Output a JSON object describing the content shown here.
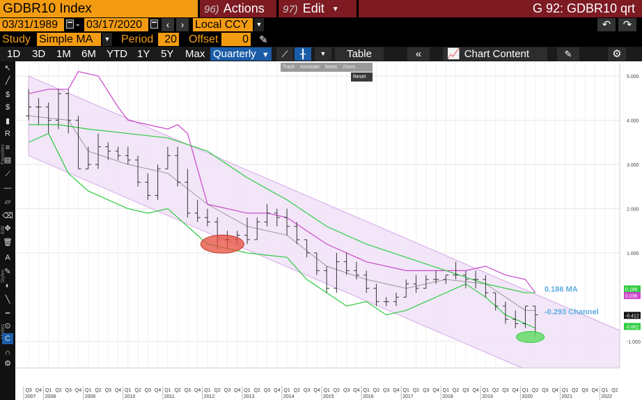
{
  "header": {
    "ticker": "GDBR10 Index",
    "actions_num": "96)",
    "actions_label": "Actions",
    "edit_num": "97)",
    "edit_label": "Edit",
    "right_title": "G 92: GDBR10 qrt"
  },
  "controls": {
    "date_start": "03/31/1989",
    "date_end": "03/17/2020",
    "date_separator": "-",
    "currency": "Local CCY",
    "study_label": "Study",
    "study_value": "Simple MA",
    "period_label": "Period",
    "period_value": "20",
    "offset_label": "Offset",
    "offset_value": "0"
  },
  "range_bar": {
    "buttons": [
      "1D",
      "3D",
      "1M",
      "6M",
      "YTD",
      "1Y",
      "5Y",
      "Max"
    ],
    "selected": "Quarterly",
    "table_label": "Table",
    "chart_content_label": "Chart Content"
  },
  "zoom_tools": {
    "items": [
      "Track",
      "Annotate",
      "News",
      "Zoom"
    ],
    "reset_label": "Reset"
  },
  "left_toolbar": {
    "sections": [
      "Favorites",
      "Edit",
      "Styles",
      "Modes"
    ]
  },
  "colors": {
    "amber": "#f39c12",
    "maroon": "#7d1a22",
    "selected_blue": "#1a5ca8",
    "ma_line": "#2ecc40",
    "channel_line": "#cc44cc",
    "band_fill": "#f0e2f7",
    "price_bars": "#333333",
    "mid_line": "#999999"
  },
  "chart_data": {
    "type": "ohlc",
    "title": "",
    "xlabel": "",
    "ylabel": "",
    "ylim": [
      -1.6,
      5.3
    ],
    "yticks": [
      {
        "v": 5,
        "label": "5.000"
      },
      {
        "v": 4,
        "label": "4.000"
      },
      {
        "v": 3,
        "label": "3.000"
      },
      {
        "v": 2,
        "label": "2.000"
      },
      {
        "v": 1,
        "label": "1.000"
      },
      {
        "v": -1,
        "label": "-1.000"
      }
    ],
    "quarter_labels": [
      "Q3",
      "Q4",
      "Q1",
      "Q2",
      "Q3",
      "Q4",
      "Q1",
      "Q2",
      "Q3",
      "Q4",
      "Q1",
      "Q2",
      "Q3",
      "Q4",
      "Q1",
      "Q2",
      "Q3",
      "Q4",
      "Q1",
      "Q2",
      "Q3",
      "Q4",
      "Q1",
      "Q2",
      "Q3",
      "Q4",
      "Q1",
      "Q2",
      "Q3",
      "Q4",
      "Q1",
      "Q2",
      "Q3",
      "Q4",
      "Q1",
      "Q2",
      "Q3",
      "Q4",
      "Q1",
      "Q2",
      "Q3",
      "Q4",
      "Q1",
      "Q2",
      "Q3",
      "Q4",
      "Q1",
      "Q2",
      "Q3",
      "Q4",
      "Q1",
      "Q2",
      "Q3",
      "Q4",
      "Q1",
      "Q2",
      "Q3",
      "Q4",
      "Q1",
      "Q2"
    ],
    "year_labels": [
      {
        "year": "2007",
        "q": 0
      },
      {
        "year": "2008",
        "q": 2
      },
      {
        "year": "2009",
        "q": 6
      },
      {
        "year": "2010",
        "q": 10
      },
      {
        "year": "2011",
        "q": 14
      },
      {
        "year": "2012",
        "q": 18
      },
      {
        "year": "2013",
        "q": 22
      },
      {
        "year": "2014",
        "q": 26
      },
      {
        "year": "2015",
        "q": 30
      },
      {
        "year": "2016",
        "q": 34
      },
      {
        "year": "2017",
        "q": 38
      },
      {
        "year": "2018",
        "q": 42
      },
      {
        "year": "2019",
        "q": 46
      },
      {
        "year": "2020",
        "q": 50
      },
      {
        "year": "2021",
        "q": 54
      },
      {
        "year": "2022",
        "q": 58
      }
    ],
    "bars": [
      {
        "q": 0,
        "o": 4.1,
        "h": 4.7,
        "l": 4.0,
        "c": 4.3
      },
      {
        "q": 1,
        "o": 4.3,
        "h": 4.5,
        "l": 3.9,
        "c": 4.3
      },
      {
        "q": 2,
        "o": 4.3,
        "h": 4.4,
        "l": 3.7,
        "c": 4.0
      },
      {
        "q": 3,
        "o": 4.0,
        "h": 4.7,
        "l": 3.8,
        "c": 4.6
      },
      {
        "q": 4,
        "o": 4.6,
        "h": 4.7,
        "l": 3.7,
        "c": 4.0
      },
      {
        "q": 5,
        "o": 4.0,
        "h": 4.1,
        "l": 2.9,
        "c": 2.9
      },
      {
        "q": 6,
        "o": 2.9,
        "h": 3.4,
        "l": 2.9,
        "c": 3.0
      },
      {
        "q": 7,
        "o": 3.0,
        "h": 3.7,
        "l": 2.9,
        "c": 3.4
      },
      {
        "q": 8,
        "o": 3.4,
        "h": 3.5,
        "l": 3.1,
        "c": 3.3
      },
      {
        "q": 9,
        "o": 3.3,
        "h": 3.4,
        "l": 3.1,
        "c": 3.2
      },
      {
        "q": 10,
        "o": 3.2,
        "h": 3.4,
        "l": 3.0,
        "c": 3.1
      },
      {
        "q": 11,
        "o": 3.1,
        "h": 3.2,
        "l": 2.5,
        "c": 2.6
      },
      {
        "q": 12,
        "o": 2.6,
        "h": 2.8,
        "l": 2.2,
        "c": 2.3
      },
      {
        "q": 13,
        "o": 2.3,
        "h": 3.0,
        "l": 2.2,
        "c": 2.9
      },
      {
        "q": 14,
        "o": 2.9,
        "h": 3.4,
        "l": 2.9,
        "c": 3.2
      },
      {
        "q": 15,
        "o": 3.2,
        "h": 3.4,
        "l": 2.5,
        "c": 2.6
      },
      {
        "q": 16,
        "o": 2.6,
        "h": 2.9,
        "l": 1.8,
        "c": 1.9
      },
      {
        "q": 17,
        "o": 1.9,
        "h": 2.2,
        "l": 1.7,
        "c": 1.8
      },
      {
        "q": 18,
        "o": 1.8,
        "h": 2.0,
        "l": 1.6,
        "c": 1.7
      },
      {
        "q": 19,
        "o": 1.7,
        "h": 1.8,
        "l": 1.1,
        "c": 1.3
      },
      {
        "q": 20,
        "o": 1.3,
        "h": 1.5,
        "l": 1.1,
        "c": 1.3
      },
      {
        "q": 21,
        "o": 1.3,
        "h": 1.5,
        "l": 1.2,
        "c": 1.4
      },
      {
        "q": 22,
        "o": 1.4,
        "h": 1.8,
        "l": 1.2,
        "c": 1.3
      },
      {
        "q": 23,
        "o": 1.3,
        "h": 1.8,
        "l": 1.3,
        "c": 1.7
      },
      {
        "q": 24,
        "o": 1.7,
        "h": 2.1,
        "l": 1.6,
        "c": 1.9
      },
      {
        "q": 25,
        "o": 1.9,
        "h": 2.0,
        "l": 1.6,
        "c": 1.8
      },
      {
        "q": 26,
        "o": 1.8,
        "h": 2.0,
        "l": 1.4,
        "c": 1.6
      },
      {
        "q": 27,
        "o": 1.6,
        "h": 1.7,
        "l": 1.2,
        "c": 1.3
      },
      {
        "q": 28,
        "o": 1.3,
        "h": 1.3,
        "l": 0.9,
        "c": 1.0
      },
      {
        "q": 29,
        "o": 1.0,
        "h": 1.0,
        "l": 0.5,
        "c": 0.6
      },
      {
        "q": 30,
        "o": 0.6,
        "h": 0.7,
        "l": 0.1,
        "c": 0.2
      },
      {
        "q": 31,
        "o": 0.2,
        "h": 1.0,
        "l": 0.1,
        "c": 0.8
      },
      {
        "q": 32,
        "o": 0.8,
        "h": 1.0,
        "l": 0.5,
        "c": 0.6
      },
      {
        "q": 33,
        "o": 0.6,
        "h": 0.8,
        "l": 0.4,
        "c": 0.5
      },
      {
        "q": 34,
        "o": 0.5,
        "h": 0.6,
        "l": 0.1,
        "c": 0.2
      },
      {
        "q": 35,
        "o": 0.2,
        "h": 0.3,
        "l": -0.2,
        "c": -0.1
      },
      {
        "q": 36,
        "o": -0.1,
        "h": 0.0,
        "l": -0.2,
        "c": -0.1
      },
      {
        "q": 37,
        "o": -0.1,
        "h": 0.1,
        "l": -0.2,
        "c": 0.0
      },
      {
        "q": 38,
        "o": 0.0,
        "h": 0.4,
        "l": 0.0,
        "c": 0.3
      },
      {
        "q": 39,
        "o": 0.3,
        "h": 0.5,
        "l": 0.1,
        "c": 0.2
      },
      {
        "q": 40,
        "o": 0.2,
        "h": 0.5,
        "l": 0.2,
        "c": 0.4
      },
      {
        "q": 41,
        "o": 0.4,
        "h": 0.6,
        "l": 0.3,
        "c": 0.4
      },
      {
        "q": 42,
        "o": 0.4,
        "h": 0.5,
        "l": 0.3,
        "c": 0.5
      },
      {
        "q": 43,
        "o": 0.5,
        "h": 0.8,
        "l": 0.4,
        "c": 0.5
      },
      {
        "q": 44,
        "o": 0.5,
        "h": 0.6,
        "l": 0.2,
        "c": 0.4
      },
      {
        "q": 45,
        "o": 0.4,
        "h": 0.6,
        "l": 0.2,
        "c": 0.4
      },
      {
        "q": 46,
        "o": 0.4,
        "h": 0.5,
        "l": 0.0,
        "c": 0.1
      },
      {
        "q": 47,
        "o": 0.1,
        "h": 0.1,
        "l": -0.3,
        "c": -0.2
      },
      {
        "q": 48,
        "o": -0.2,
        "h": -0.1,
        "l": -0.6,
        "c": -0.5
      },
      {
        "q": 49,
        "o": -0.5,
        "h": -0.3,
        "l": -0.7,
        "c": -0.6
      },
      {
        "q": 50,
        "o": -0.6,
        "h": -0.2,
        "l": -0.7,
        "c": -0.2
      },
      {
        "q": 51,
        "o": -0.2,
        "h": -0.2,
        "l": -0.9,
        "c": -0.4
      }
    ],
    "ma_line": [
      [
        0,
        3.9
      ],
      [
        3,
        3.9
      ],
      [
        6,
        3.8
      ],
      [
        10,
        3.7
      ],
      [
        14,
        3.6
      ],
      [
        18,
        3.3
      ],
      [
        22,
        2.7
      ],
      [
        26,
        2.2
      ],
      [
        30,
        1.6
      ],
      [
        34,
        1.2
      ],
      [
        38,
        0.9
      ],
      [
        42,
        0.6
      ],
      [
        46,
        0.3
      ],
      [
        50,
        0.1
      ],
      [
        51,
        0.1
      ]
    ],
    "upper_channel": [
      [
        0,
        4.6
      ],
      [
        2,
        4.7
      ],
      [
        4,
        4.7
      ],
      [
        5,
        5.1
      ],
      [
        7,
        5.0
      ],
      [
        9,
        4.3
      ],
      [
        10,
        4.0
      ],
      [
        12,
        3.9
      ],
      [
        14,
        3.8
      ],
      [
        15,
        3.9
      ],
      [
        16,
        3.7
      ],
      [
        18,
        2.1
      ],
      [
        22,
        1.9
      ],
      [
        24,
        1.9
      ],
      [
        26,
        1.8
      ],
      [
        30,
        1.2
      ],
      [
        34,
        0.8
      ],
      [
        38,
        0.6
      ],
      [
        42,
        0.6
      ],
      [
        44,
        0.6
      ],
      [
        46,
        0.7
      ],
      [
        48,
        0.5
      ],
      [
        50,
        0.4
      ],
      [
        51,
        0.1
      ]
    ],
    "lower_channel": [
      [
        0,
        3.5
      ],
      [
        2,
        3.7
      ],
      [
        4,
        2.8
      ],
      [
        6,
        2.4
      ],
      [
        8,
        2.2
      ],
      [
        10,
        2.0
      ],
      [
        12,
        1.9
      ],
      [
        14,
        2.0
      ],
      [
        16,
        1.6
      ],
      [
        18,
        1.2
      ],
      [
        22,
        1.0
      ],
      [
        26,
        0.9
      ],
      [
        28,
        0.4
      ],
      [
        30,
        0.1
      ],
      [
        32,
        -0.2
      ],
      [
        34,
        -0.1
      ],
      [
        36,
        -0.4
      ],
      [
        38,
        -0.3
      ],
      [
        40,
        -0.1
      ],
      [
        42,
        0.1
      ],
      [
        44,
        0.3
      ],
      [
        46,
        0.0
      ],
      [
        48,
        -0.4
      ],
      [
        50,
        -0.6
      ],
      [
        51,
        -0.7
      ]
    ],
    "mid_line": [
      [
        0,
        4.1
      ],
      [
        4,
        4.0
      ],
      [
        6,
        3.3
      ],
      [
        10,
        3.0
      ],
      [
        14,
        2.8
      ],
      [
        18,
        2.1
      ],
      [
        22,
        1.6
      ],
      [
        26,
        1.4
      ],
      [
        30,
        0.7
      ],
      [
        34,
        0.4
      ],
      [
        38,
        0.2
      ],
      [
        42,
        0.4
      ],
      [
        46,
        0.3
      ],
      [
        50,
        -0.3
      ],
      [
        51,
        -0.3
      ]
    ],
    "band": {
      "top_start": [
        0,
        5.0
      ],
      "top_end": [
        60,
        -0.8
      ],
      "bottom_start": [
        0,
        3.2
      ],
      "bottom_end": [
        60,
        -2.6
      ]
    },
    "annotations": {
      "ma_label": "0.186 MA",
      "channel_label": "-0.293 Channel",
      "ma_value": 0.186,
      "channel_value": -0.293,
      "last_tags": [
        {
          "v": 0.186,
          "label": "0.186",
          "bg": "#2ecc40"
        },
        {
          "v": 0.036,
          "label": "0.036",
          "bg": "#cc44cc"
        },
        {
          "v": -0.412,
          "label": "-0.412",
          "bg": "#111111"
        },
        {
          "v": -0.662,
          "label": "-0.662",
          "bg": "#2ecc40"
        }
      ],
      "red_ellipse": {
        "q": 19.5,
        "v": 1.2
      },
      "green_ellipse": {
        "q": 50.5,
        "v": -0.9
      }
    }
  }
}
